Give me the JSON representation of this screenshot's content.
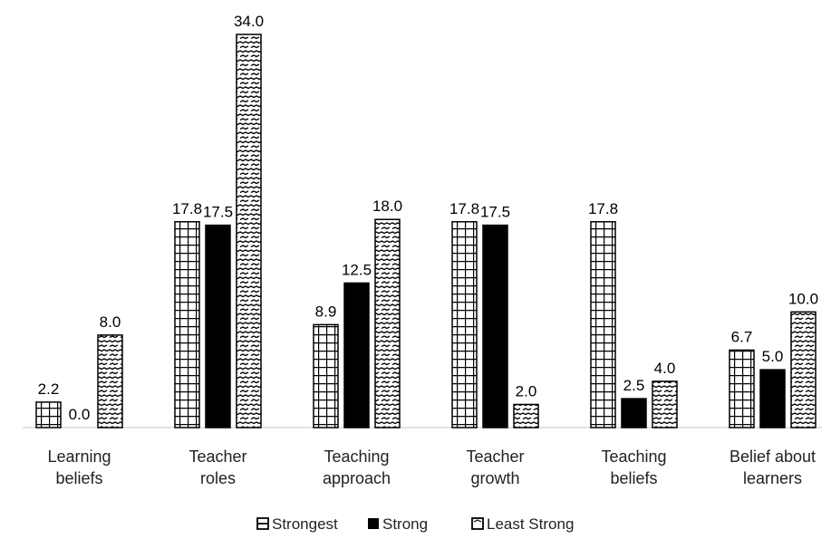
{
  "chart_data": {
    "type": "bar",
    "categories": [
      [
        "Learning",
        "beliefs"
      ],
      [
        "Teacher",
        "roles"
      ],
      [
        "Teaching",
        "approach"
      ],
      [
        "Teacher",
        "growth"
      ],
      [
        "Teaching",
        "beliefs"
      ],
      [
        "Belief about",
        "learners"
      ]
    ],
    "series": [
      {
        "name": "Strongest",
        "pattern": "grid",
        "values": [
          2.2,
          17.8,
          8.9,
          17.8,
          17.8,
          6.7
        ]
      },
      {
        "name": "Strong",
        "pattern": "solid",
        "values": [
          0.0,
          17.5,
          12.5,
          17.5,
          2.5,
          5.0
        ]
      },
      {
        "name": "Least Strong",
        "pattern": "dashed",
        "values": [
          8.0,
          34.0,
          18.0,
          2.0,
          4.0,
          10.0
        ]
      }
    ],
    "value_format": "0.0",
    "ylim": [
      0,
      36
    ],
    "grid": false,
    "legend": "bottom-center",
    "colors": {
      "foreground": "#000000",
      "background": "#ffffff",
      "axis": "#d9d9d9"
    }
  }
}
